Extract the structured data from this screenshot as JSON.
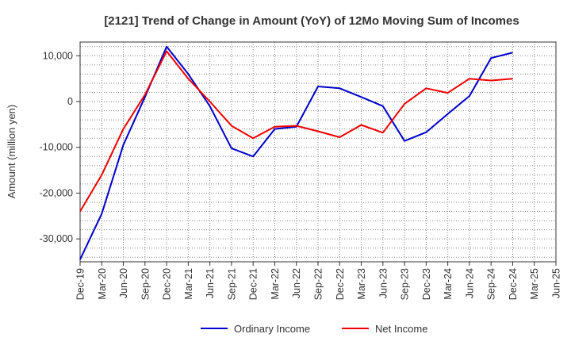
{
  "chart_data": {
    "type": "line",
    "title": "[2121]  Trend of Change in Amount (YoY) of 12Mo Moving Sum of Incomes",
    "xlabel": "",
    "ylabel": "Amount (million yen)",
    "ylim": [
      -35000,
      13000
    ],
    "yticks": [
      10000,
      0,
      -10000,
      -20000,
      -30000
    ],
    "ytick_labels": [
      "10,000",
      "0",
      "-10,000",
      "-20,000",
      "-30,000"
    ],
    "categories": [
      "Dec-19",
      "Mar-20",
      "Jun-20",
      "Sep-20",
      "Dec-20",
      "Mar-21",
      "Jun-21",
      "Sep-21",
      "Dec-21",
      "Mar-22",
      "Jun-22",
      "Sep-22",
      "Dec-22",
      "Mar-23",
      "Jun-23",
      "Sep-23",
      "Dec-23",
      "Mar-24",
      "Jun-24",
      "Sep-24",
      "Dec-24",
      "Mar-25",
      "Jun-25"
    ],
    "grid": true,
    "legend_position": "bottom",
    "series": [
      {
        "name": "Ordinary Income",
        "color": "#0000cc",
        "values": [
          -34500,
          -24500,
          -9500,
          1000,
          12000,
          6000,
          -1000,
          -10200,
          -12000,
          -6000,
          -5500,
          3300,
          2900,
          1000,
          -1000,
          -8600,
          -6700,
          -2700,
          1200,
          9500,
          10700,
          null,
          null
        ]
      },
      {
        "name": "Net Income",
        "color": "#ee0000",
        "values": [
          -24000,
          -16000,
          -6000,
          1500,
          11000,
          5000,
          0,
          -5300,
          -8000,
          -5500,
          -5300,
          -6500,
          -7800,
          -5100,
          -6800,
          -500,
          2900,
          1900,
          5000,
          4600,
          5000,
          null,
          null
        ]
      }
    ]
  }
}
